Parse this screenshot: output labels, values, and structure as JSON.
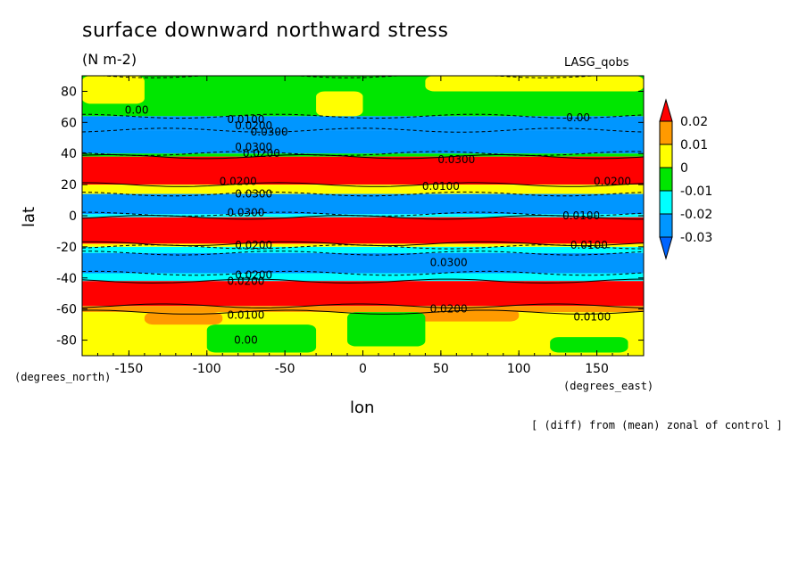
{
  "chart_data": {
    "type": "heatmap",
    "title": "surface downward northward stress",
    "units": "(N m-2)",
    "dataset_label": "LASG_qobs",
    "xlabel": "lon",
    "ylabel": "lat",
    "x_unit": "(degrees_east)",
    "y_unit": "(degrees_north)",
    "footnote": "[ (diff) from (mean) zonal of control ]",
    "xlim": [
      -180,
      180
    ],
    "ylim": [
      -90,
      90
    ],
    "x_ticks": [
      -150,
      -100,
      -50,
      0,
      50,
      100,
      150
    ],
    "y_ticks": [
      -80,
      -60,
      -40,
      -20,
      0,
      20,
      40,
      60,
      80
    ],
    "x_tick_labels": [
      "-150",
      "-100",
      "-50",
      "0",
      "50",
      "100",
      "150"
    ],
    "y_tick_labels": [
      "-80",
      "-60",
      "-40",
      "-20",
      "0",
      "20",
      "40",
      "60",
      "80"
    ],
    "colorbar": {
      "levels": [
        "0.02",
        "0.01",
        "0",
        "-0.01",
        "-0.02",
        "-0.03"
      ],
      "colors": [
        "#ff0000",
        "#ff9a00",
        "#ffff00",
        "#00e600",
        "#00ffff",
        "#0096ff"
      ],
      "over_color": "#ff0000",
      "under_color": "#0064ff"
    },
    "bands": [
      {
        "lat_min": 64,
        "lat_max": 90,
        "value": -0.005
      },
      {
        "lat_min": 55,
        "lat_max": 64,
        "value": -0.025
      },
      {
        "lat_min": 40,
        "lat_max": 55,
        "value": -0.035
      },
      {
        "lat_min": 38,
        "lat_max": 40,
        "value": -0.01
      },
      {
        "lat_min": 20,
        "lat_max": 38,
        "value": 0.025
      },
      {
        "lat_min": 14,
        "lat_max": 20,
        "value": 0.005
      },
      {
        "lat_min": 1,
        "lat_max": 14,
        "value": -0.035
      },
      {
        "lat_min": -1,
        "lat_max": 1,
        "value": -0.015
      },
      {
        "lat_min": -18,
        "lat_max": -1,
        "value": 0.025
      },
      {
        "lat_min": -20,
        "lat_max": -18,
        "value": 0.005
      },
      {
        "lat_min": -24,
        "lat_max": -20,
        "value": -0.015
      },
      {
        "lat_min": -37,
        "lat_max": -24,
        "value": -0.035
      },
      {
        "lat_min": -42,
        "lat_max": -37,
        "value": -0.015
      },
      {
        "lat_min": -58,
        "lat_max": -42,
        "value": 0.025
      },
      {
        "lat_min": -62,
        "lat_max": -58,
        "value": 0.015
      },
      {
        "lat_min": -90,
        "lat_max": -62,
        "value": 0.005
      }
    ],
    "patches": [
      {
        "lon_min": -175,
        "lon_max": 175,
        "lat_min": 66,
        "lat_max": 88,
        "value": -0.005
      },
      {
        "lon_min": -180,
        "lon_max": -140,
        "lat_min": 72,
        "lat_max": 90,
        "value": 0.005
      },
      {
        "lon_min": -30,
        "lon_max": 0,
        "lat_min": 64,
        "lat_max": 80,
        "value": 0.005
      },
      {
        "lon_min": 40,
        "lon_max": 180,
        "lat_min": 80,
        "lat_max": 90,
        "value": 0.005
      },
      {
        "lon_min": -140,
        "lon_max": -90,
        "lat_min": -70,
        "lat_max": -62,
        "value": 0.015
      },
      {
        "lon_min": 30,
        "lon_max": 100,
        "lat_min": -68,
        "lat_max": -60,
        "value": 0.015
      },
      {
        "lon_min": -100,
        "lon_max": -30,
        "lat_min": -88,
        "lat_max": -70,
        "value": -0.005
      },
      {
        "lon_min": -10,
        "lon_max": 40,
        "lat_min": -84,
        "lat_max": -62,
        "value": -0.005
      },
      {
        "lon_min": 120,
        "lon_max": 170,
        "lat_min": -88,
        "lat_max": -78,
        "value": -0.005
      }
    ],
    "contour_labels": [
      {
        "text": "0.00",
        "lon": -145,
        "lat": 68
      },
      {
        "text": "0.0100",
        "lon": -75,
        "lat": 62
      },
      {
        "text": "0.0200",
        "lon": -70,
        "lat": 58
      },
      {
        "text": "0.0300",
        "lon": -60,
        "lat": 54
      },
      {
        "text": "0.00",
        "lon": 138,
        "lat": 63
      },
      {
        "text": "0.0300",
        "lon": 60,
        "lat": 36
      },
      {
        "text": "0.0300",
        "lon": -70,
        "lat": 44
      },
      {
        "text": "0.0200",
        "lon": -65,
        "lat": 40
      },
      {
        "text": "0.0200",
        "lon": -80,
        "lat": 22
      },
      {
        "text": "0.0200",
        "lon": 160,
        "lat": 22
      },
      {
        "text": "0.0100",
        "lon": 50,
        "lat": 19
      },
      {
        "text": "0.0300",
        "lon": -70,
        "lat": 14
      },
      {
        "text": "0.0300",
        "lon": -75,
        "lat": 2
      },
      {
        "text": "0.0100",
        "lon": 140,
        "lat": 0
      },
      {
        "text": "0.0200",
        "lon": -70,
        "lat": -19
      },
      {
        "text": "0.0100",
        "lon": 145,
        "lat": -19
      },
      {
        "text": "0.0300",
        "lon": 55,
        "lat": -30
      },
      {
        "text": "0.0200",
        "lon": -70,
        "lat": -38
      },
      {
        "text": "0.0200",
        "lon": -75,
        "lat": -42
      },
      {
        "text": "0.0200",
        "lon": 55,
        "lat": -60
      },
      {
        "text": "0.0100",
        "lon": -75,
        "lat": -64
      },
      {
        "text": "0.0100",
        "lon": 147,
        "lat": -65
      },
      {
        "text": "0.00",
        "lon": -75,
        "lat": -80
      }
    ]
  }
}
